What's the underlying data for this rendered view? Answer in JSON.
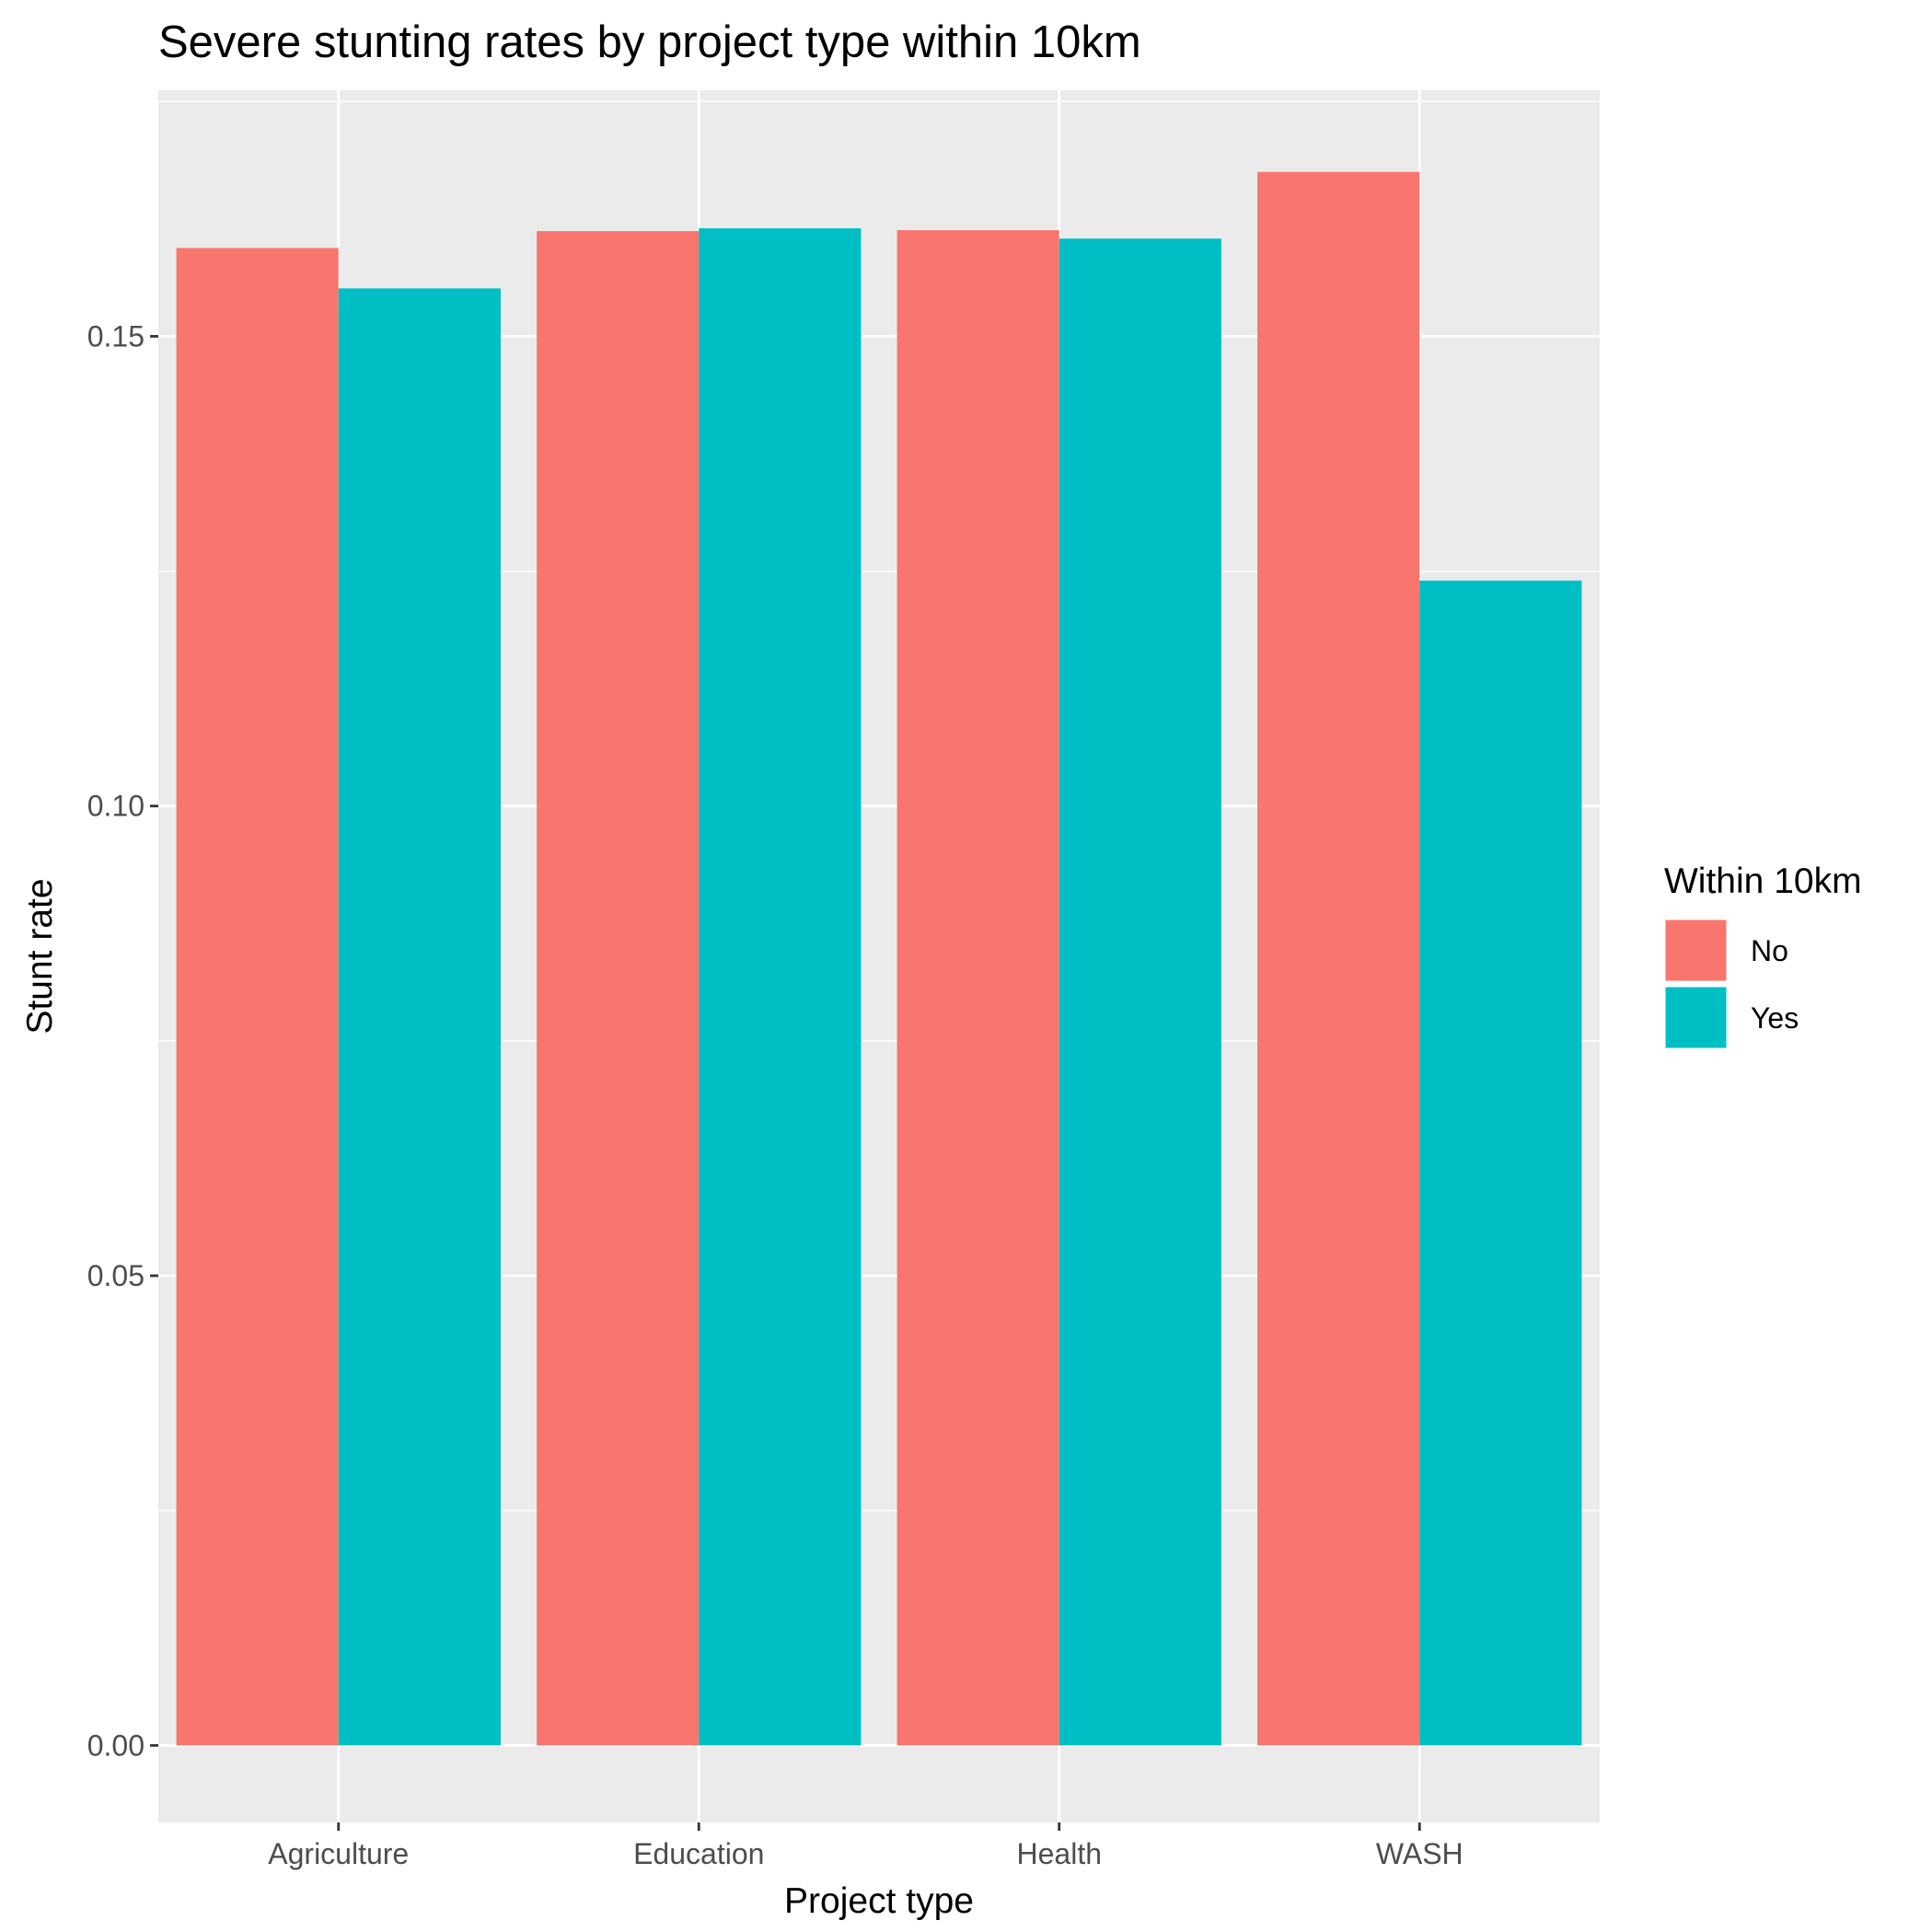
{
  "chart_data": {
    "type": "bar",
    "title": "Severe stunting rates by project type within 10km",
    "xlabel": "Project type",
    "ylabel": "Stunt rate",
    "categories": [
      "Agriculture",
      "Education",
      "Health",
      "WASH"
    ],
    "series": [
      {
        "name": "No",
        "color": "#F8766D",
        "values": [
          0.1594,
          0.1612,
          0.1613,
          0.1675
        ]
      },
      {
        "name": "Yes",
        "color": "#00BFC4",
        "values": [
          0.1551,
          0.1615,
          0.1604,
          0.124
        ]
      }
    ],
    "ylim": [
      -0.0082,
      0.1762
    ],
    "yticks": [
      0.0,
      0.05,
      0.1,
      0.15
    ],
    "ytick_labels": [
      "0.00",
      "0.05",
      "0.10",
      "0.15"
    ],
    "grid": true,
    "panel_background": "#EBEBEB",
    "legend": {
      "title": "Within 10km",
      "position": "right"
    }
  }
}
